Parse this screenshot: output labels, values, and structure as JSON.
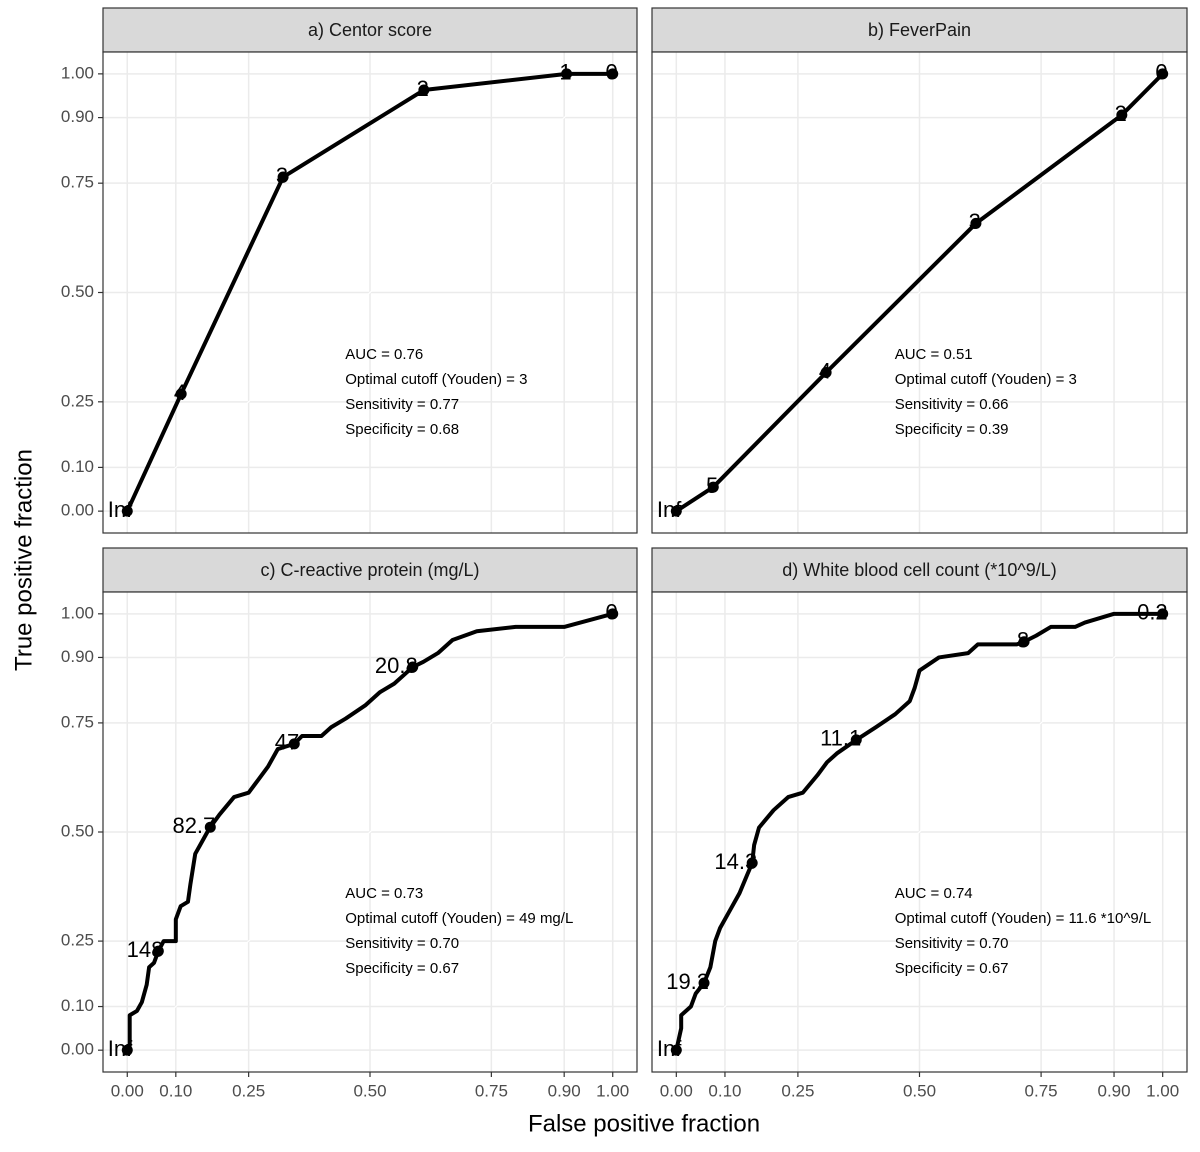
{
  "axes": {
    "xlabel": "False positive fraction",
    "ylabel": "True positive fraction",
    "xlim": [
      -0.05,
      1.05
    ],
    "ylim": [
      -0.05,
      1.05
    ],
    "xticks": [
      {
        "value": 0,
        "label": "0.00"
      },
      {
        "value": 0.1,
        "label": "0.10"
      },
      {
        "value": 0.25,
        "label": "0.25"
      },
      {
        "value": 0.5,
        "label": "0.50"
      },
      {
        "value": 0.75,
        "label": "0.75"
      },
      {
        "value": 0.9,
        "label": "0.90"
      },
      {
        "value": 1,
        "label": "1.00"
      }
    ],
    "yticks": [
      {
        "value": 0,
        "label": "0.00"
      },
      {
        "value": 0.1,
        "label": "0.10"
      },
      {
        "value": 0.25,
        "label": "0.25"
      },
      {
        "value": 0.5,
        "label": "0.50"
      },
      {
        "value": 0.75,
        "label": "0.75"
      },
      {
        "value": 0.9,
        "label": "0.90"
      },
      {
        "value": 1,
        "label": "1.00"
      }
    ],
    "grid": true,
    "color": "#000000"
  },
  "chart_data": [
    {
      "type": "line",
      "title": "a) Centor score",
      "x": [
        0,
        0.111,
        0.321,
        0.611,
        0.905,
        1
      ],
      "values": [
        0,
        0.268,
        0.764,
        0.963,
        1,
        1
      ],
      "cutoffs": {
        "x": [
          0,
          0.111,
          0.321,
          0.611,
          0.905,
          1
        ],
        "y": [
          0,
          0.268,
          0.764,
          0.963,
          1,
          1
        ],
        "labels": [
          "Inf",
          "4",
          "3",
          "2",
          "1",
          "0"
        ]
      },
      "annotations": [
        "AUC = 0.76",
        "Optimal cutoff (Youden) = 3",
        "Sensitivity = 0.77",
        "Specificity = 0.68"
      ]
    },
    {
      "type": "line",
      "title": "b) FeverPain",
      "x": [
        0,
        0.076,
        0.308,
        0.616,
        0.916,
        1
      ],
      "values": [
        0,
        0.055,
        0.317,
        0.658,
        0.906,
        1
      ],
      "cutoffs": {
        "x": [
          0,
          0.076,
          0.308,
          0.616,
          0.916,
          1
        ],
        "y": [
          0,
          0.055,
          0.317,
          0.658,
          0.906,
          1
        ],
        "labels": [
          "Inf",
          "5",
          "4",
          "3",
          "2",
          "0"
        ]
      },
      "annotations": [
        "AUC = 0.51",
        "Optimal cutoff (Youden) = 3",
        "Sensitivity = 0.66",
        "Specificity = 0.39"
      ]
    },
    {
      "type": "line",
      "title": "c) C-reactive protein (mg/L)",
      "x": [
        0,
        0.005,
        0.005,
        0.02,
        0.03,
        0.04,
        0.045,
        0.055,
        0.064,
        0.075,
        0.1,
        0.1,
        0.11,
        0.125,
        0.13,
        0.14,
        0.15,
        0.165,
        0.171,
        0.19,
        0.22,
        0.25,
        0.27,
        0.29,
        0.31,
        0.344,
        0.36,
        0.4,
        0.42,
        0.45,
        0.49,
        0.52,
        0.55,
        0.588,
        0.61,
        0.64,
        0.67,
        0.72,
        0.8,
        0.9,
        1
      ],
      "values": [
        0,
        0.01,
        0.08,
        0.09,
        0.11,
        0.15,
        0.19,
        0.2,
        0.227,
        0.25,
        0.25,
        0.3,
        0.33,
        0.34,
        0.38,
        0.45,
        0.47,
        0.5,
        0.511,
        0.54,
        0.58,
        0.59,
        0.62,
        0.65,
        0.69,
        0.702,
        0.72,
        0.72,
        0.74,
        0.76,
        0.79,
        0.82,
        0.84,
        0.878,
        0.89,
        0.91,
        0.94,
        0.96,
        0.97,
        0.97,
        1
      ],
      "cutoffs": {
        "x": [
          0,
          0.064,
          0.171,
          0.344,
          0.588,
          1
        ],
        "y": [
          0,
          0.227,
          0.511,
          0.702,
          0.878,
          1
        ],
        "labels": [
          "Inf",
          "148",
          "82.7",
          "47",
          "20.8",
          "0"
        ]
      },
      "annotations": [
        "AUC = 0.73",
        "Optimal cutoff (Youden) = 49 mg/L",
        "Sensitivity = 0.70",
        "Specificity = 0.67"
      ]
    },
    {
      "type": "line",
      "title": "d) White blood cell count (*10^9/L)",
      "x": [
        0,
        0.01,
        0.01,
        0.03,
        0.04,
        0.057,
        0.07,
        0.08,
        0.09,
        0.11,
        0.13,
        0.145,
        0.156,
        0.16,
        0.17,
        0.2,
        0.23,
        0.26,
        0.29,
        0.31,
        0.33,
        0.37,
        0.41,
        0.45,
        0.48,
        0.49,
        0.5,
        0.54,
        0.6,
        0.62,
        0.7,
        0.715,
        0.74,
        0.77,
        0.82,
        0.84,
        0.9,
        1
      ],
      "values": [
        0,
        0.05,
        0.08,
        0.1,
        0.13,
        0.154,
        0.19,
        0.25,
        0.28,
        0.32,
        0.36,
        0.4,
        0.429,
        0.47,
        0.51,
        0.55,
        0.58,
        0.59,
        0.63,
        0.66,
        0.68,
        0.711,
        0.74,
        0.77,
        0.8,
        0.83,
        0.87,
        0.9,
        0.91,
        0.93,
        0.93,
        0.936,
        0.95,
        0.97,
        0.97,
        0.98,
        1,
        1
      ],
      "cutoffs": {
        "x": [
          0,
          0.057,
          0.156,
          0.37,
          0.715,
          1
        ],
        "y": [
          0,
          0.154,
          0.429,
          0.711,
          0.936,
          1
        ],
        "labels": [
          "Inf",
          "19.2",
          "14.3",
          "11.1",
          "8",
          "0.2"
        ]
      },
      "annotations": [
        "AUC = 0.74",
        "Optimal cutoff (Youden) = 11.6 *10^9/L",
        "Sensitivity = 0.70",
        "Specificity = 0.67"
      ]
    }
  ]
}
